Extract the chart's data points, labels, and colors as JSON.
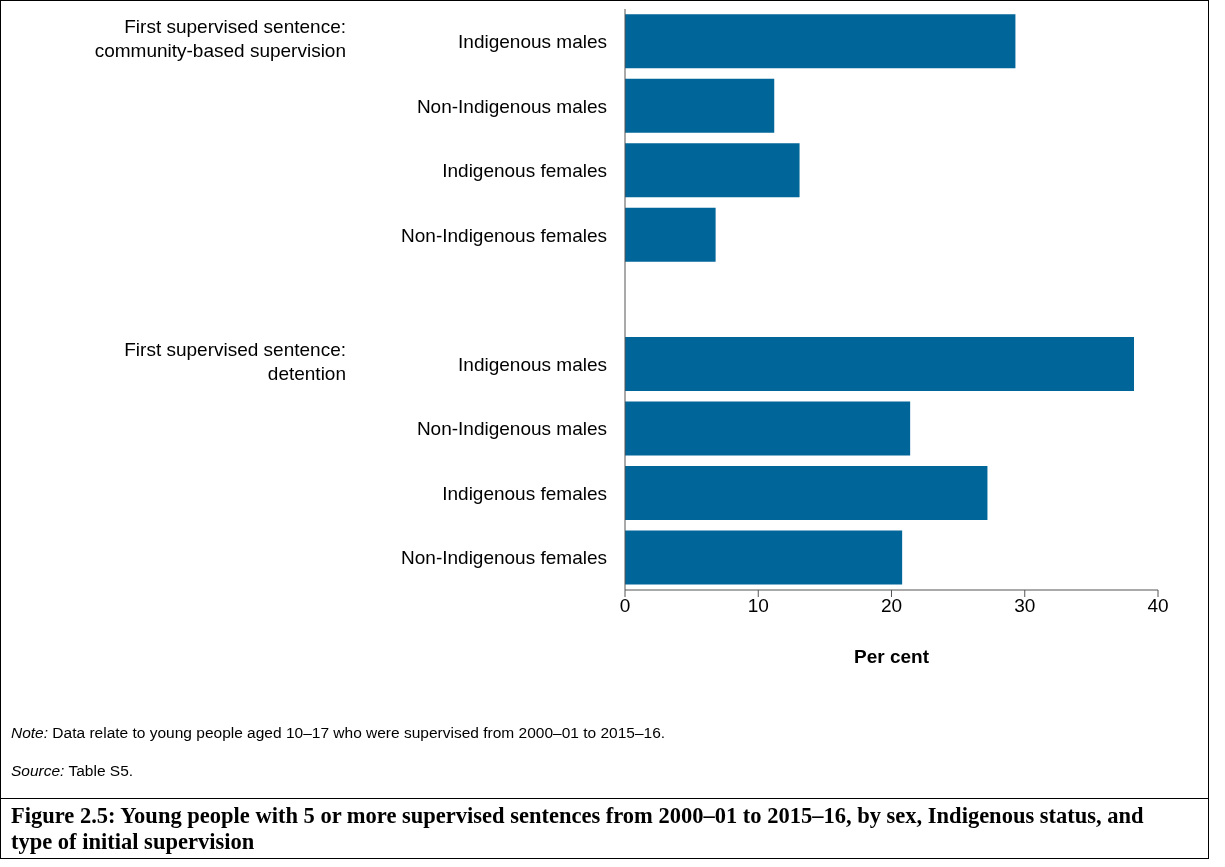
{
  "chart_data": {
    "type": "bar",
    "orientation": "horizontal",
    "title": "Figure 2.5: Young people with 5 or more supervised sentences from 2000–01 to 2015–16, by sex, Indigenous status, and type of initial supervision",
    "xlabel": "Per cent",
    "categories": [
      "Indigenous males",
      "Non-Indigenous males",
      "Indigenous females",
      "Non-Indigenous females",
      null,
      "Indigenous males",
      "Non-Indigenous males",
      "Indigenous females",
      "Non-Indigenous females"
    ],
    "values": [
      29.3,
      11.2,
      13.1,
      6.8,
      null,
      38.2,
      21.4,
      27.2,
      20.8
    ],
    "color": "#006599",
    "xlim": [
      0,
      40
    ],
    "xticks": [
      0,
      10,
      20,
      30,
      40
    ],
    "grid": false,
    "legend": false,
    "annotations": [
      "First supervised sentence: community-based supervision",
      "First supervised sentence: detention",
      "Note: Data relate to young people aged 10–17 who were supervised from 2000–01 to 2015–16.",
      "Source: Table S5."
    ]
  }
}
